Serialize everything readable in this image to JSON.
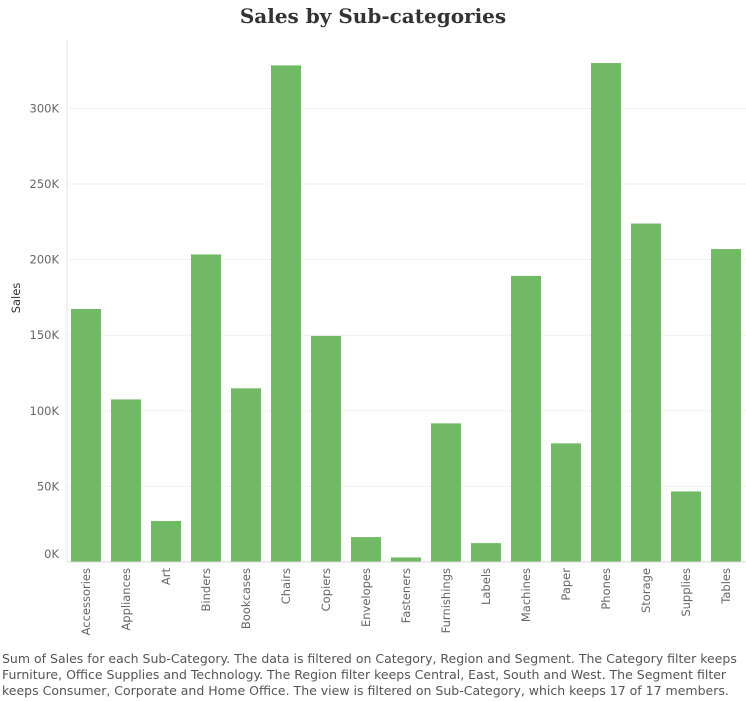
{
  "chart_data": {
    "type": "bar",
    "title": "Sales by Sub-categories",
    "xlabel": "",
    "ylabel": "Sales",
    "categories": [
      "Accessories",
      "Appliances",
      "Art",
      "Binders",
      "Bookcases",
      "Chairs",
      "Copiers",
      "Envelopes",
      "Fasteners",
      "Furnishings",
      "Labels",
      "Machines",
      "Paper",
      "Phones",
      "Storage",
      "Supplies",
      "Tables"
    ],
    "values": [
      167380,
      107532,
      27119,
      203413,
      114880,
      328449,
      149528,
      16476,
      3024,
      91705,
      12486,
      189239,
      78479,
      330007,
      223844,
      46674,
      206966
    ],
    "ylim": [
      0,
      345000
    ],
    "yticks": [
      0,
      50000,
      100000,
      150000,
      200000,
      250000,
      300000
    ],
    "ytick_labels": [
      "0K",
      "50K",
      "100K",
      "150K",
      "200K",
      "250K",
      "300K"
    ],
    "grid": true,
    "color": "#72b966"
  },
  "caption": "Sum of Sales for each Sub-Category. The data is filtered on Category, Region and Segment. The Category filter keeps Furniture, Office Supplies and Technology. The Region filter keeps Central, East, South and West. The Segment filter keeps Consumer, Corporate and Home Office. The view is filtered on Sub-Category, which keeps 17 of 17 members."
}
